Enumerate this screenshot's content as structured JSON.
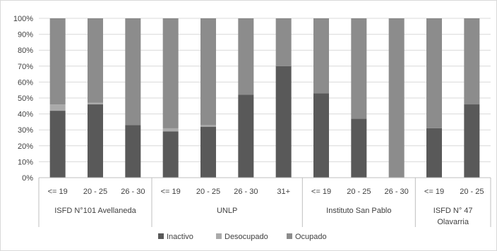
{
  "chart_data": {
    "type": "bar",
    "stacked": "percent",
    "title": "",
    "xlabel": "",
    "ylabel": "",
    "ylim": [
      0,
      100
    ],
    "y_ticks": [
      "0%",
      "10%",
      "20%",
      "30%",
      "40%",
      "50%",
      "60%",
      "70%",
      "80%",
      "90%",
      "100%"
    ],
    "grid": true,
    "legend_position": "bottom",
    "categories": [
      "<= 19",
      "20 - 25",
      "26 - 30",
      "<= 19",
      "20 - 25",
      "26 - 30",
      "31+",
      "<= 19",
      "20 - 25",
      "26 - 30",
      "<= 19",
      "20 - 25"
    ],
    "groups": [
      {
        "label_lines": [
          "ISFD N°101 Avellaneda"
        ],
        "count": 3
      },
      {
        "label_lines": [
          "UNLP"
        ],
        "count": 4
      },
      {
        "label_lines": [
          "Instituto San Pablo"
        ],
        "count": 3
      },
      {
        "label_lines": [
          "ISFD N° 47",
          "Olavarria"
        ],
        "count": 2
      }
    ],
    "series": [
      {
        "name": "Inactivo",
        "color": "#595959",
        "values": [
          42,
          46,
          33,
          29,
          32,
          52,
          70,
          53,
          37,
          0,
          31,
          46
        ]
      },
      {
        "name": "Desocupado",
        "color": "#aaaaaa",
        "values": [
          4,
          1,
          0,
          2,
          1,
          0,
          0,
          0,
          0,
          0,
          0,
          0
        ]
      },
      {
        "name": "Ocupado",
        "color": "#8c8c8c",
        "values": [
          54,
          53,
          67,
          69,
          67,
          48,
          30,
          47,
          63,
          100,
          69,
          54
        ]
      }
    ]
  }
}
